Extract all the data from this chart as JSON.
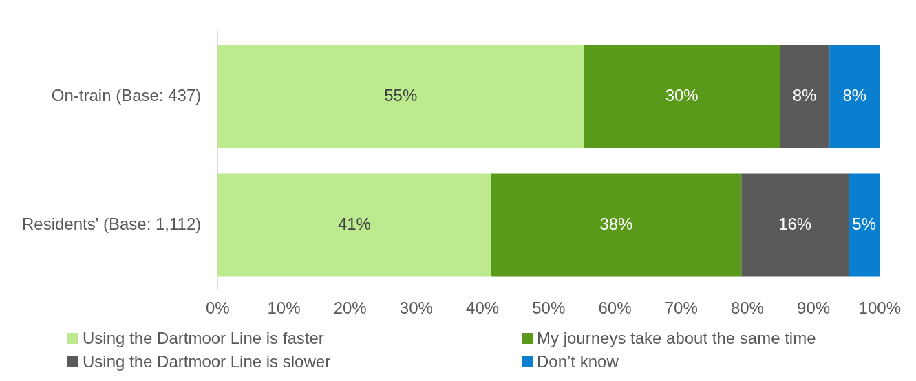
{
  "chart_data": {
    "type": "bar",
    "orientation": "horizontal",
    "stacked": true,
    "categories": [
      "On-train (Base: 437)",
      "Residents' (Base: 1,112)"
    ],
    "series": [
      {
        "name": "Using the Dartmoor Line is faster",
        "color": "#bdea8e",
        "values": [
          55.3,
          41.3
        ],
        "value_labels": [
          "55%",
          "41%"
        ]
      },
      {
        "name": "My journeys take about the same time",
        "color": "#5a9a1a",
        "values": [
          29.6,
          37.8
        ],
        "value_labels": [
          "30%",
          "38%"
        ]
      },
      {
        "name": "Using the Dartmoor Line is slower",
        "color": "#5a5a5a",
        "values": [
          7.5,
          16.2
        ],
        "value_labels": [
          "8%",
          "16%"
        ]
      },
      {
        "name": "Don’t know",
        "color": "#0a7fcf",
        "values": [
          7.6,
          4.7
        ],
        "value_labels": [
          "8%",
          "5%"
        ]
      }
    ],
    "xlim": [
      0,
      100
    ],
    "xticks": [
      {
        "value": 0,
        "label": "0%"
      },
      {
        "value": 10,
        "label": "10%"
      },
      {
        "value": 20,
        "label": "20%"
      },
      {
        "value": 30,
        "label": "30%"
      },
      {
        "value": 40,
        "label": "40%"
      },
      {
        "value": 50,
        "label": "50%"
      },
      {
        "value": 60,
        "label": "60%"
      },
      {
        "value": 70,
        "label": "70%"
      },
      {
        "value": 80,
        "label": "80%"
      },
      {
        "value": 90,
        "label": "90%"
      },
      {
        "value": 100,
        "label": "100%"
      }
    ],
    "grid": false,
    "legend": "bottom"
  }
}
